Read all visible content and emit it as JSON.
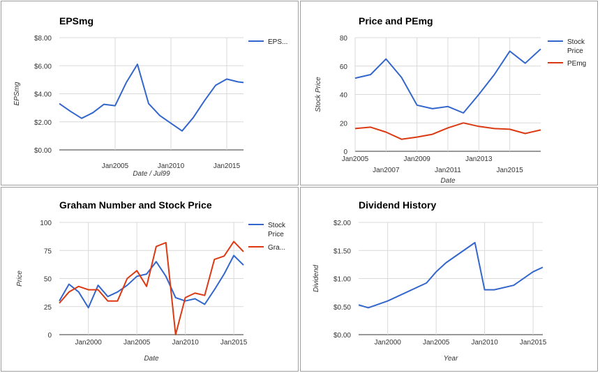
{
  "chart_data": [
    {
      "type": "line",
      "title": "EPSmg",
      "xlabel": "Date / Jul99",
      "ylabel": "EPSmg",
      "x_ticks": [
        [
          "Jan2005",
          2005
        ],
        [
          "Jan2010",
          2010
        ],
        [
          "Jan2015",
          2015
        ]
      ],
      "xlim": [
        2000,
        2016.5
      ],
      "ylim": [
        0,
        8
      ],
      "y_ticks": [
        [
          0,
          "$0.00"
        ],
        [
          2,
          "$2.00"
        ],
        [
          4,
          "$4.00"
        ],
        [
          6,
          "$6.00"
        ],
        [
          8,
          "$8.00"
        ]
      ],
      "legend": "right",
      "series": [
        {
          "name": "EPS...",
          "color": "#3366cc",
          "x": [
            2000,
            2001,
            2002,
            2003,
            2004,
            2005,
            2006,
            2007,
            2008,
            2009,
            2010,
            2011,
            2012,
            2013,
            2014,
            2015,
            2016,
            2016.5
          ],
          "y": [
            3.3,
            2.75,
            2.25,
            2.65,
            3.25,
            3.15,
            4.8,
            6.1,
            3.3,
            2.45,
            1.9,
            1.35,
            2.3,
            3.5,
            4.6,
            5.05,
            4.85,
            4.8
          ]
        }
      ]
    },
    {
      "type": "line",
      "title": "Price and PEmg",
      "xlabel": "Date",
      "ylabel": "Stock Price",
      "x_ticks": [
        [
          "Jan2005",
          2005
        ],
        [
          "Jan2007",
          2007
        ],
        [
          "Jan2009",
          2009
        ],
        [
          "Jan2011",
          2011
        ],
        [
          "Jan2013",
          2013
        ],
        [
          "Jan2015",
          2015
        ]
      ],
      "xlim": [
        2005,
        2017
      ],
      "ylim": [
        0,
        80
      ],
      "y_ticks": [
        [
          0,
          "0"
        ],
        [
          20,
          "20"
        ],
        [
          40,
          "40"
        ],
        [
          60,
          "60"
        ],
        [
          80,
          "80"
        ]
      ],
      "legend": "right",
      "series": [
        {
          "name": "Stock Price",
          "legend_lines": [
            "Stock",
            "Price"
          ],
          "color": "#3366cc",
          "x": [
            2005,
            2006,
            2007,
            2008,
            2009,
            2010,
            2011,
            2012,
            2013,
            2014,
            2015,
            2016,
            2017
          ],
          "y": [
            51.5,
            54,
            65,
            52,
            32.5,
            30,
            31.5,
            27,
            40,
            54,
            70.5,
            62,
            72
          ]
        },
        {
          "name": "PEmg",
          "legend_lines": [
            "PEmg"
          ],
          "color": "#dc3912",
          "x": [
            2005,
            2006,
            2007,
            2008,
            2009,
            2010,
            2011,
            2012,
            2013,
            2014,
            2015,
            2016,
            2017
          ],
          "y": [
            16,
            17,
            13.5,
            8.5,
            10,
            12,
            16.5,
            20,
            17.5,
            16,
            15.5,
            12.5,
            15
          ]
        }
      ]
    },
    {
      "type": "line",
      "title": "Graham Number and Stock Price",
      "xlabel": "Date",
      "ylabel": "Price",
      "x_ticks": [
        [
          "Jan2000",
          2000
        ],
        [
          "Jan2005",
          2005
        ],
        [
          "Jan2010",
          2010
        ],
        [
          "Jan2015",
          2015
        ]
      ],
      "xlim": [
        1997,
        2016
      ],
      "ylim": [
        0,
        100
      ],
      "y_ticks": [
        [
          0,
          "0"
        ],
        [
          25,
          "25"
        ],
        [
          50,
          "50"
        ],
        [
          75,
          "75"
        ],
        [
          100,
          "100"
        ]
      ],
      "legend": "right",
      "series": [
        {
          "name": "Stock Price",
          "legend_lines": [
            "Stock",
            "Price"
          ],
          "color": "#3366cc",
          "x": [
            1997,
            1998,
            1999,
            2000,
            2001,
            2002,
            2003,
            2004,
            2005,
            2006,
            2007,
            2008,
            2009,
            2010,
            2011,
            2012,
            2013,
            2014,
            2015,
            2016
          ],
          "y": [
            30,
            45,
            38,
            24,
            44,
            34,
            38,
            44,
            52,
            54,
            65,
            52,
            33,
            30,
            32,
            27,
            40,
            54,
            70.5,
            62
          ]
        },
        {
          "name": "Gra...",
          "legend_lines": [
            "Gra..."
          ],
          "color": "#dc3912",
          "x": [
            1997,
            1998,
            1999,
            2000,
            2001,
            2002,
            2003,
            2004,
            2005,
            2006,
            2007,
            2008,
            2009,
            2010,
            2011,
            2012,
            2013,
            2014,
            2015,
            2016
          ],
          "y": [
            28,
            38,
            43,
            40,
            40,
            30,
            30,
            50,
            57,
            43,
            78.5,
            82,
            0,
            33,
            37,
            35,
            67,
            70,
            83,
            74
          ]
        }
      ]
    },
    {
      "type": "line",
      "title": "Dividend History",
      "xlabel": "Year",
      "ylabel": "Dividend",
      "x_ticks": [
        [
          "Jan2000",
          2000
        ],
        [
          "Jan2005",
          2005
        ],
        [
          "Jan2010",
          2010
        ],
        [
          "Jan2015",
          2015
        ]
      ],
      "xlim": [
        1997,
        2016
      ],
      "ylim": [
        0,
        2
      ],
      "y_ticks": [
        [
          0,
          "$0.00"
        ],
        [
          0.5,
          "$0.50"
        ],
        [
          1,
          "$1.00"
        ],
        [
          1.5,
          "$1.50"
        ],
        [
          2,
          "$2.00"
        ]
      ],
      "legend": "none",
      "series": [
        {
          "name": "Dividend",
          "color": "#3366cc",
          "x": [
            1997,
            1998,
            2000,
            2004,
            2005,
            2006,
            2009,
            2010,
            2011,
            2013,
            2015,
            2016
          ],
          "y": [
            0.53,
            0.48,
            0.6,
            0.92,
            1.12,
            1.28,
            1.64,
            0.8,
            0.8,
            0.88,
            1.12,
            1.2
          ]
        }
      ]
    }
  ]
}
